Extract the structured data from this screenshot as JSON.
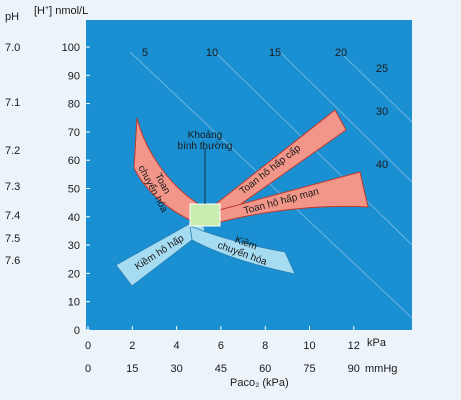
{
  "y_axis": {
    "ph_title": "pH",
    "h_title": "[H",
    "h_title_sup": "+",
    "h_title_unit": "] nmol/L",
    "h_ticks": [
      "100",
      "90",
      "80",
      "70",
      "60",
      "50",
      "40",
      "30",
      "20",
      "10",
      "0"
    ],
    "ph_ticks": [
      "7.0",
      "7.1",
      "7.2",
      "7.3",
      "7.4",
      "7.5",
      "7.6"
    ]
  },
  "x_axis": {
    "kpa_ticks": [
      "0",
      "2",
      "4",
      "6",
      "8",
      "10",
      "12"
    ],
    "kpa_unit": "kPa",
    "mmhg_ticks": [
      "0",
      "15",
      "30",
      "45",
      "60",
      "75",
      "90"
    ],
    "mmhg_unit": "mmHg",
    "title": "Paco₂ (kPa)"
  },
  "isobars": {
    "top": [
      "5",
      "10",
      "15",
      "20"
    ],
    "right": [
      "25",
      "30",
      "40"
    ]
  },
  "regions": {
    "normal": {
      "label_line1": "Khoảng",
      "label_line2": "bình thường"
    },
    "metabolic_acidosis": {
      "line1": "Toan",
      "line2": "chuyển hóa"
    },
    "acute_resp_acidosis": "Toan hô hấp cấp",
    "chronic_resp_acidosis": "Toan hô hấp mạn",
    "resp_alkalosis": "Kiềm hô hấp",
    "metabolic_alkalosis": {
      "line1": "Kiềm",
      "line2": "chuyển hóa"
    }
  },
  "colors": {
    "plot_bg": "#1a8fd1",
    "acidosis_fill": "#f2968a",
    "alkalosis_fill": "#a6dcf2",
    "normal_fill": "#c9ecb0",
    "page_bg": "#ecf4fa"
  }
}
